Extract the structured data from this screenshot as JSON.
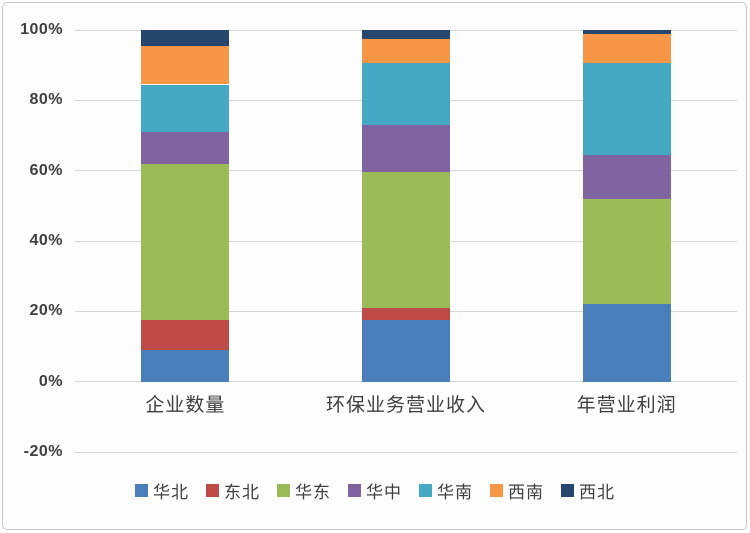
{
  "chart_data": {
    "type": "bar",
    "subtype": "stacked-100-percent",
    "title": "",
    "xlabel": "",
    "ylabel": "",
    "grid": true,
    "legend_position": "bottom",
    "ylim": [
      -20,
      100
    ],
    "yticks": [
      "100%",
      "80%",
      "60%",
      "40%",
      "20%",
      "0%",
      "-20%"
    ],
    "ytick_values": [
      100,
      80,
      60,
      40,
      20,
      0,
      -20
    ],
    "categories": [
      "企业数量",
      "环保业务营业收入",
      "年营业利润"
    ],
    "series": [
      {
        "name": "华北",
        "color": "#4A7EBB",
        "values": [
          9,
          17.5,
          22
        ]
      },
      {
        "name": "东北",
        "color": "#BE4B48",
        "values": [
          8.5,
          3.5,
          0
        ]
      },
      {
        "name": "华东",
        "color": "#9BBB59",
        "values": [
          44.5,
          38.5,
          30
        ]
      },
      {
        "name": "华中",
        "color": "#8064A2",
        "values": [
          9,
          13.5,
          12.5
        ]
      },
      {
        "name": "华南",
        "color": "#45A9C3",
        "values": [
          13.5,
          17.5,
          26
        ]
      },
      {
        "name": "西南",
        "color": "#F79646",
        "values": [
          11,
          7,
          8.5
        ]
      },
      {
        "name": "西北",
        "color": "#26466D",
        "values": [
          4.5,
          2.5,
          1
        ]
      }
    ]
  }
}
